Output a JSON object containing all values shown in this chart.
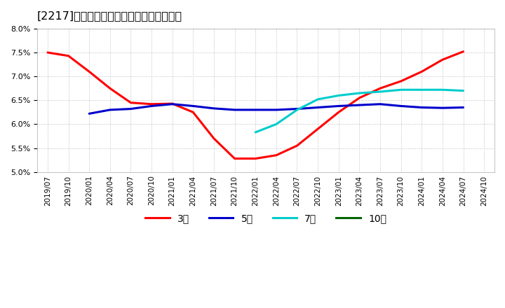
{
  "title": "[2217]　経常利益マージンの平均値の推移",
  "ylim": [
    5.0,
    8.0
  ],
  "yticks": [
    5.0,
    5.5,
    6.0,
    6.5,
    7.0,
    7.5,
    8.0
  ],
  "background_color": "#ffffff",
  "grid_color": "#bbbbbb",
  "series": {
    "3年": {
      "color": "#ff0000",
      "points": [
        [
          "2019/07",
          7.5
        ],
        [
          "2019/10",
          7.43
        ],
        [
          "2020/01",
          7.1
        ],
        [
          "2020/04",
          6.75
        ],
        [
          "2020/07",
          6.45
        ],
        [
          "2020/10",
          6.42
        ],
        [
          "2021/01",
          6.43
        ],
        [
          "2021/04",
          6.25
        ],
        [
          "2021/07",
          5.7
        ],
        [
          "2021/10",
          5.28
        ],
        [
          "2022/01",
          5.28
        ],
        [
          "2022/04",
          5.35
        ],
        [
          "2022/07",
          5.55
        ],
        [
          "2022/10",
          5.9
        ],
        [
          "2023/01",
          6.25
        ],
        [
          "2023/04",
          6.55
        ],
        [
          "2023/07",
          6.75
        ],
        [
          "2023/10",
          6.9
        ],
        [
          "2024/01",
          7.1
        ],
        [
          "2024/04",
          7.35
        ],
        [
          "2024/07",
          7.52
        ]
      ]
    },
    "5年": {
      "color": "#0000cc",
      "points": [
        [
          "2020/01",
          6.22
        ],
        [
          "2020/04",
          6.3
        ],
        [
          "2020/07",
          6.32
        ],
        [
          "2020/10",
          6.38
        ],
        [
          "2021/01",
          6.42
        ],
        [
          "2021/04",
          6.38
        ],
        [
          "2021/07",
          6.33
        ],
        [
          "2021/10",
          6.3
        ],
        [
          "2022/01",
          6.3
        ],
        [
          "2022/04",
          6.3
        ],
        [
          "2022/07",
          6.32
        ],
        [
          "2022/10",
          6.35
        ],
        [
          "2023/01",
          6.38
        ],
        [
          "2023/04",
          6.4
        ],
        [
          "2023/07",
          6.42
        ],
        [
          "2023/10",
          6.38
        ],
        [
          "2024/01",
          6.35
        ],
        [
          "2024/04",
          6.34
        ],
        [
          "2024/07",
          6.35
        ]
      ]
    },
    "7年": {
      "color": "#00cccc",
      "points": [
        [
          "2022/01",
          5.83
        ],
        [
          "2022/04",
          6.0
        ],
        [
          "2022/07",
          6.3
        ],
        [
          "2022/10",
          6.52
        ],
        [
          "2023/01",
          6.6
        ],
        [
          "2023/04",
          6.65
        ],
        [
          "2023/07",
          6.68
        ],
        [
          "2023/10",
          6.72
        ],
        [
          "2024/01",
          6.72
        ],
        [
          "2024/04",
          6.72
        ],
        [
          "2024/07",
          6.7
        ]
      ]
    },
    "10年": {
      "color": "#006600",
      "points": []
    }
  },
  "xtick_labels": [
    "2019/07",
    "2019/10",
    "2020/01",
    "2020/04",
    "2020/07",
    "2020/10",
    "2021/01",
    "2021/04",
    "2021/07",
    "2021/10",
    "2022/01",
    "2022/04",
    "2022/07",
    "2022/10",
    "2023/01",
    "2023/04",
    "2023/07",
    "2023/10",
    "2024/01",
    "2024/04",
    "2024/07",
    "2024/10"
  ],
  "legend_labels": [
    "3年",
    "5年",
    "7年",
    "10年"
  ],
  "legend_colors": [
    "#ff0000",
    "#0000cc",
    "#00cccc",
    "#006600"
  ]
}
